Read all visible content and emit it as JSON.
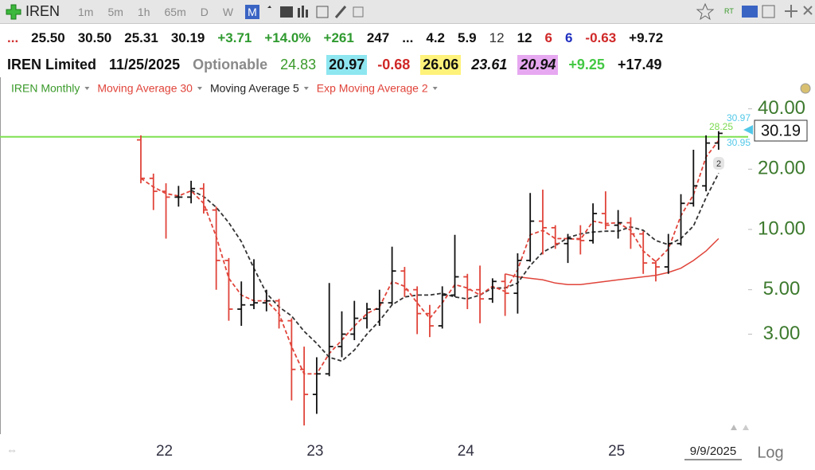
{
  "toolbar": {
    "symbol": "IREN",
    "intervals": [
      "1m",
      "5m",
      "1h",
      "65m",
      "D",
      "W",
      "M"
    ],
    "active": "M"
  },
  "quote_row_1": [
    {
      "text": "...",
      "color": "#d03030",
      "weight": "bold"
    },
    {
      "text": "25.50",
      "color": "#111",
      "weight": "bold"
    },
    {
      "text": "30.50",
      "color": "#111",
      "weight": "bold"
    },
    {
      "text": "25.31",
      "color": "#111",
      "weight": "bold"
    },
    {
      "text": "30.19",
      "color": "#111",
      "weight": "bold"
    },
    {
      "text": "+3.71",
      "color": "#2f9a2f",
      "weight": "bold"
    },
    {
      "text": "+14.0%",
      "color": "#2f9a2f",
      "weight": "bold"
    },
    {
      "text": "+261",
      "color": "#2f9a2f",
      "weight": "bold"
    },
    {
      "text": "247",
      "color": "#111",
      "weight": "bold"
    },
    {
      "text": "...",
      "color": "#111",
      "weight": "bold"
    },
    {
      "text": "4.2",
      "color": "#111",
      "weight": "bold"
    },
    {
      "text": "5.9",
      "color": "#111",
      "weight": "bold"
    },
    {
      "text": "12",
      "color": "#333",
      "weight": "normal"
    },
    {
      "text": "12",
      "color": "#111",
      "weight": "bold"
    },
    {
      "text": "6",
      "color": "#d02828",
      "weight": "bold"
    },
    {
      "text": "6",
      "color": "#2030c0",
      "weight": "bold"
    },
    {
      "text": "-0.63",
      "color": "#d02828",
      "weight": "bold"
    },
    {
      "text": "+9.72",
      "color": "#111",
      "weight": "bold"
    }
  ],
  "quote_row_2": [
    {
      "text": "IREN Limited",
      "color": "#111",
      "weight": "bold",
      "bg": "transparent",
      "style": "normal"
    },
    {
      "text": "11/25/2025",
      "color": "#111",
      "weight": "bold",
      "bg": "transparent",
      "style": "normal"
    },
    {
      "text": "Optionable",
      "color": "#8a8a8a",
      "weight": "bold",
      "bg": "transparent",
      "style": "normal"
    },
    {
      "text": "24.83",
      "color": "#3a9a2a",
      "weight": "normal",
      "bg": "transparent",
      "style": "normal"
    },
    {
      "text": "20.97",
      "color": "#111",
      "weight": "bold",
      "bg": "#8ee6f0",
      "style": "normal"
    },
    {
      "text": "-0.68",
      "color": "#d02828",
      "weight": "bold",
      "bg": "transparent",
      "style": "normal"
    },
    {
      "text": "26.06",
      "color": "#111",
      "weight": "bold",
      "bg": "#fff27a",
      "style": "normal"
    },
    {
      "text": "23.61",
      "color": "#111",
      "weight": "bold",
      "bg": "transparent",
      "style": "italic"
    },
    {
      "text": "20.94",
      "color": "#111",
      "weight": "bold",
      "bg": "#e6a8f0",
      "style": "italic"
    },
    {
      "text": "+9.25",
      "color": "#44c844",
      "weight": "bold",
      "bg": "transparent",
      "style": "normal"
    },
    {
      "text": "+17.49",
      "color": "#111",
      "weight": "bold",
      "bg": "transparent",
      "style": "normal"
    }
  ],
  "chart_data": {
    "type": "ohlc",
    "price_name": "IREN Monthly",
    "price_color": "#3a9a2a",
    "up_color": "#111111",
    "down_color": "#e0443a",
    "categories": [
      null,
      null,
      "22",
      null,
      null,
      null,
      null,
      null,
      null,
      null,
      null,
      null,
      null,
      null,
      "23",
      null,
      null,
      null,
      null,
      null,
      null,
      null,
      null,
      null,
      null,
      null,
      "24",
      null,
      null,
      null,
      null,
      null,
      null,
      null,
      null,
      null,
      null,
      null,
      "25",
      null,
      null,
      null,
      null,
      null,
      null,
      null,
      null
    ],
    "open": [
      28,
      18,
      15.5,
      14.5,
      14.5,
      16,
      12.5,
      7,
      4,
      4.2,
      4.3,
      4.4,
      3.5,
      2.0,
      1.5,
      1.9,
      2.6,
      3.0,
      3.6,
      4.0,
      4.3,
      6.2,
      5.0,
      3.8,
      3.3,
      4.7,
      5.8,
      5.0,
      4.5,
      5.5,
      4.8,
      7.0,
      11.0,
      10.2,
      8.5,
      9.0,
      8.8,
      12.0,
      10.5,
      10.8,
      9.5,
      6.8,
      6.5,
      8.5,
      13.5,
      16.5,
      27.0
    ],
    "high": [
      29.5,
      19,
      17,
      16.5,
      17.5,
      17,
      13,
      7.2,
      5.5,
      7.1,
      5.0,
      4.5,
      3.6,
      2.6,
      2.3,
      5.4,
      3.9,
      4.4,
      4.3,
      5.0,
      8.2,
      6.5,
      5.2,
      4.2,
      5.2,
      9.4,
      6.0,
      6.6,
      5.7,
      6.0,
      7.6,
      15.2,
      15.8,
      10.5,
      9.5,
      10.5,
      13.5,
      15.5,
      12.5,
      11.5,
      9.8,
      7.0,
      9.5,
      15.0,
      25,
      29.5,
      30.97
    ],
    "low": [
      17,
      12.5,
      9,
      13,
      13.5,
      12,
      5,
      3.5,
      3.3,
      4.0,
      3.9,
      3.2,
      1.4,
      1.05,
      1.2,
      1.85,
      2.3,
      2.8,
      3.2,
      3.3,
      4.2,
      4.6,
      3.0,
      2.9,
      3.2,
      4.6,
      4.0,
      3.4,
      4.3,
      3.7,
      3.8,
      6.9,
      7.5,
      8.0,
      6.8,
      7.5,
      8.5,
      10.0,
      9.0,
      8.0,
      6.0,
      5.5,
      6.0,
      8.3,
      13.0,
      15.5,
      25
    ],
    "close": [
      18,
      15.5,
      14.5,
      14.5,
      16,
      12.5,
      7,
      4,
      4.2,
      4.3,
      4.4,
      3.5,
      2.0,
      1.5,
      1.9,
      2.6,
      3.0,
      3.6,
      4.0,
      4.3,
      6.2,
      5.0,
      3.8,
      3.3,
      4.7,
      5.8,
      5.0,
      4.5,
      5.5,
      4.8,
      7.0,
      11.0,
      10.2,
      8.5,
      9.0,
      8.8,
      12.0,
      10.5,
      10.8,
      9.5,
      6.8,
      6.5,
      8.5,
      13.5,
      16.5,
      27.0,
      30.19
    ],
    "series": [
      {
        "name": "Moving Average 30",
        "color": "#e0443a",
        "dashed": false,
        "values": [
          null,
          null,
          null,
          null,
          null,
          null,
          null,
          null,
          null,
          null,
          null,
          null,
          null,
          null,
          null,
          null,
          null,
          null,
          null,
          null,
          null,
          null,
          null,
          null,
          null,
          null,
          null,
          null,
          null,
          6.0,
          5.8,
          5.7,
          5.6,
          5.4,
          5.3,
          5.3,
          5.4,
          5.5,
          5.6,
          5.7,
          5.8,
          5.9,
          6.1,
          6.4,
          7.0,
          7.8,
          9.0
        ]
      },
      {
        "name": "Moving Average 5",
        "color": "#333333",
        "dashed": true,
        "values": [
          null,
          null,
          null,
          null,
          15.7,
          14.6,
          12.9,
          10.8,
          8.7,
          6.4,
          4.8,
          4.1,
          3.7,
          3.1,
          2.7,
          2.3,
          2.2,
          2.5,
          3.0,
          3.5,
          4.2,
          4.6,
          4.7,
          4.7,
          4.8,
          4.6,
          4.5,
          4.7,
          5.1,
          5.1,
          5.4,
          6.6,
          7.7,
          8.3,
          9.1,
          9.5,
          9.7,
          9.8,
          9.8,
          10.3,
          9.9,
          8.8,
          8.4,
          9.0,
          10.4,
          14.4,
          19.1
        ]
      },
      {
        "name": "Exp Moving Average 2",
        "color": "#e0443a",
        "dashed": true,
        "values": [
          18,
          16.3,
          15.1,
          14.7,
          15.6,
          13.5,
          9.2,
          5.7,
          4.7,
          4.4,
          4.4,
          3.8,
          2.6,
          1.9,
          1.9,
          2.4,
          2.8,
          3.3,
          3.8,
          4.1,
          5.5,
          5.2,
          4.3,
          3.6,
          4.3,
          5.3,
          5.1,
          4.7,
          5.2,
          4.9,
          6.3,
          9.4,
          9.9,
          9.0,
          9.0,
          8.9,
          11.0,
          10.7,
          10.8,
          9.9,
          7.8,
          6.9,
          8.0,
          11.7,
          14.9,
          23.0,
          27.8
        ]
      }
    ],
    "log_scale": true,
    "ylim": [
      0.95,
      57
    ],
    "yticks": [
      {
        "value": 3,
        "label": "3.00"
      },
      {
        "value": 5,
        "label": "5.00"
      },
      {
        "value": 10,
        "label": "10.00"
      },
      {
        "value": 20,
        "label": "20.00"
      },
      {
        "value": 40,
        "label": "40.00"
      }
    ],
    "axis_color": "#3d7a2e",
    "hline": {
      "value": 29,
      "color": "#7ee050"
    },
    "price_labels": [
      {
        "value": 30.97,
        "color": "#52c8e8"
      },
      {
        "value": 28.25,
        "color": "#7ad94f"
      },
      {
        "value": 30.95,
        "color": "#52c8e8"
      }
    ],
    "last_price": 30.19,
    "marker": "2",
    "date_label": "9/9/2025",
    "scale_button": "Log"
  }
}
